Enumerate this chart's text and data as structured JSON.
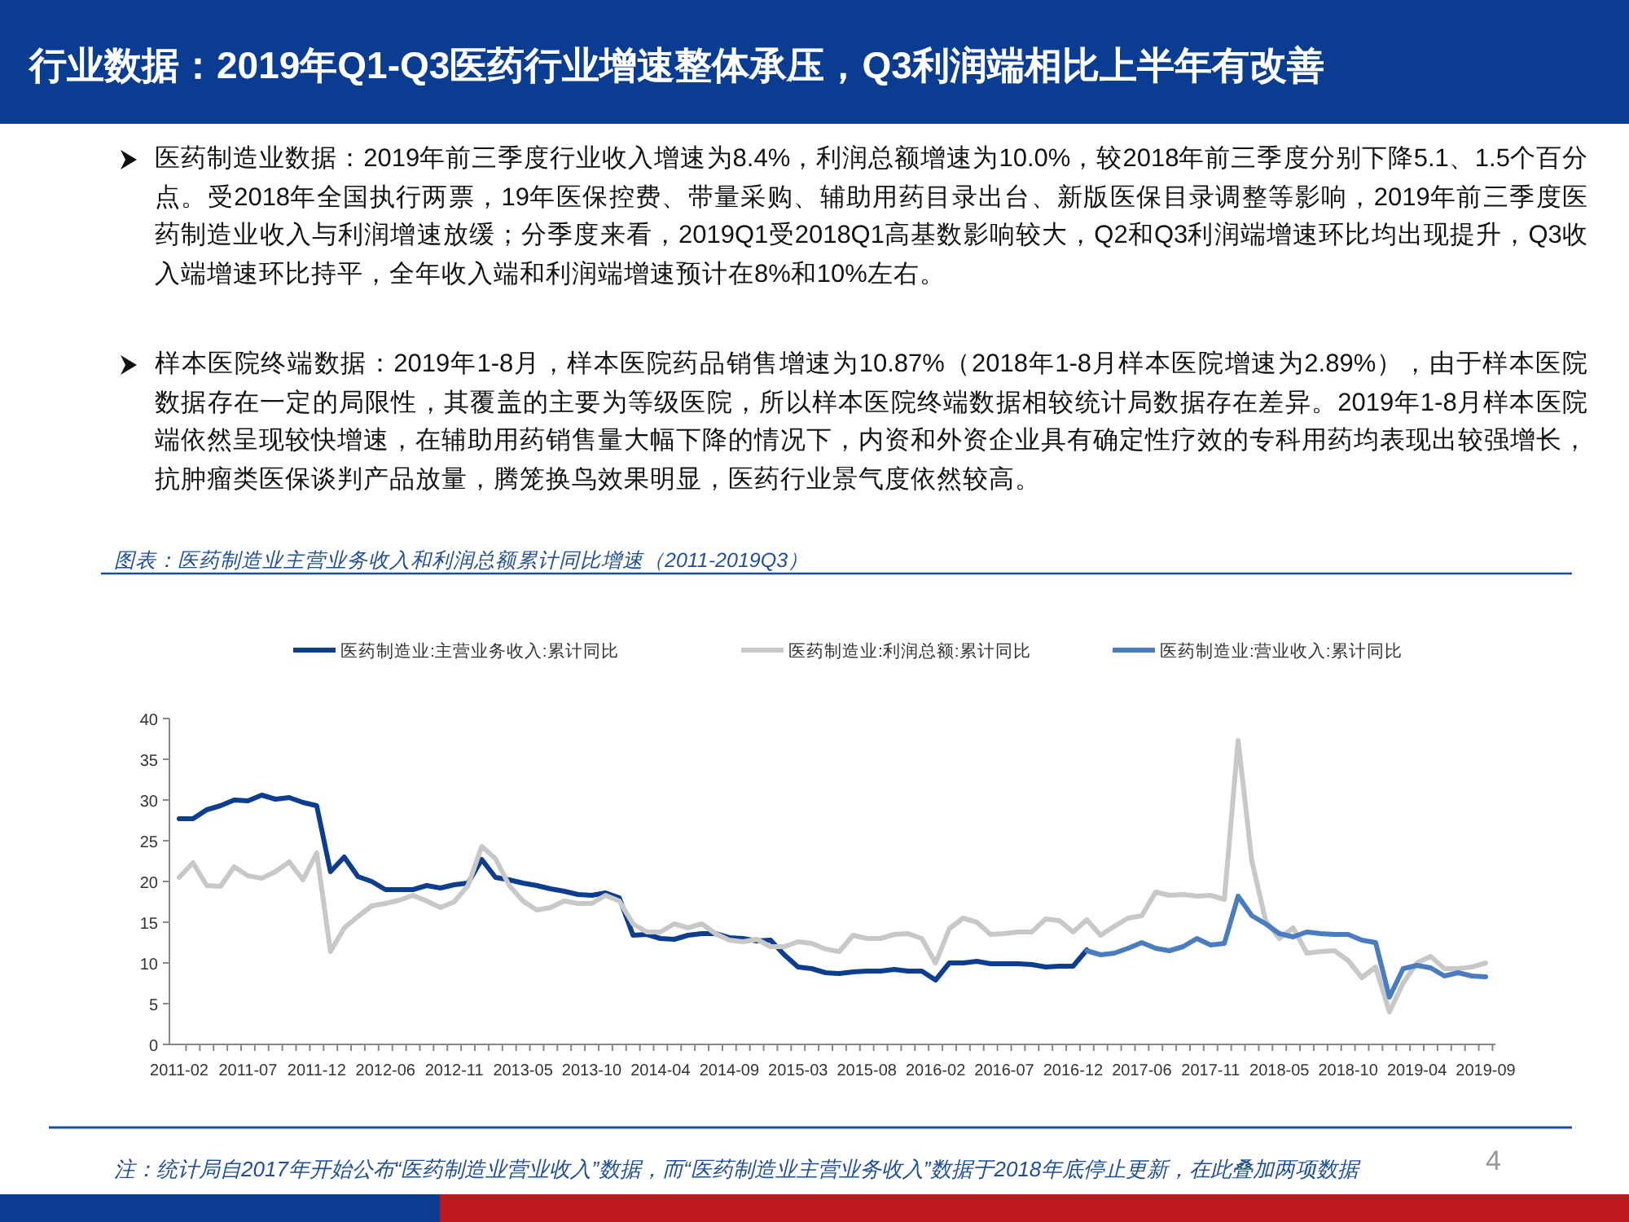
{
  "chart_data": {
    "type": "line",
    "title": "行业数据：2019年Q1-Q3医药行业增速整体承压，Q3利润端相比上半年有改善",
    "subtitle": "图表：医药制造业主营业务收入和利润总额累计同比增速（2011-2019Q3）",
    "annotations": [
      "医药制造业数据：2019年前三季度行业收入增速为8.4%，利润总额增速为10.0%，较2018年前三季度分别下降5.1、1.5个百分点。受2018年全国执行两票，19年医保控费、带量采购、辅助用药目录出台、新版医保目录调整等影响，2019年前三季度医药制造业收入与利润增速放缓；分季度来看，2019Q1受2018Q1高基数影响较大，Q2和Q3利润端增速环比均出现提升，Q3收入端增速环比持平，全年收入端和利润端增速预计在8%和10%左右。",
      "样本医院终端数据：2019年1-8月，样本医院药品销售增速为10.87%（2018年1-8月样本医院增速为2.89%），由于样本医院数据存在一定的局限性，其覆盖的主要为等级医院，所以样本医院终端数据相较统计局数据存在差异。2019年1-8月样本医院端依然呈现较快增速，在辅助用药销售量大幅下降的情况下，内资和外资企业具有确定性疗效的专科用药均表现出较强增长，抗肿瘤类医保谈判产品放量，腾笼换鸟效果明显，医药行业景气度依然较高。",
      "注：统计局自2017年开始公布“医药制造业营业收入”数据，而“医药制造业主营业务收入”数据于2018年底停止更新，在此叠加两项数据",
      "4"
    ],
    "categories": [
      "2011-02",
      null,
      null,
      null,
      null,
      "2011-07",
      null,
      null,
      null,
      null,
      "2011-12",
      null,
      null,
      null,
      null,
      "2012-06",
      null,
      null,
      null,
      null,
      "2012-11",
      null,
      null,
      null,
      null,
      "2013-05",
      null,
      null,
      null,
      null,
      "2013-10",
      null,
      null,
      null,
      null,
      "2014-04",
      null,
      null,
      null,
      null,
      "2014-09",
      null,
      null,
      null,
      null,
      "2015-03",
      null,
      null,
      null,
      null,
      "2015-08",
      null,
      null,
      null,
      null,
      "2016-02",
      null,
      null,
      null,
      null,
      "2016-07",
      null,
      null,
      null,
      null,
      "2016-12",
      null,
      null,
      null,
      null,
      "2017-06",
      null,
      null,
      null,
      null,
      "2017-11",
      null,
      null,
      null,
      null,
      "2018-05",
      null,
      null,
      null,
      null,
      "2018-10",
      null,
      null,
      null,
      null,
      "2019-04",
      null,
      null,
      null,
      null,
      "2019-09"
    ],
    "series": [
      {
        "name": "医药制造业:主营业务收入:累计同比",
        "color": "#0d3d8f",
        "values": [
          27.7,
          27.7,
          28.8,
          29.3,
          30.0,
          29.9,
          30.6,
          30.1,
          30.3,
          29.7,
          29.3,
          21.2,
          23.0,
          20.6,
          20.0,
          19.0,
          19.0,
          19.0,
          19.5,
          19.2,
          19.6,
          19.8,
          22.7,
          20.5,
          20.2,
          19.8,
          19.5,
          19.1,
          18.8,
          18.4,
          18.3,
          18.6,
          18.0,
          13.4,
          13.5,
          13.0,
          12.9,
          13.4,
          13.6,
          13.6,
          13.1,
          13.0,
          12.7,
          12.8,
          11.0,
          9.5,
          9.3,
          8.8,
          8.7,
          8.9,
          9.0,
          9.0,
          9.2,
          9.0,
          9.0,
          7.9,
          10.0,
          10.0,
          10.2,
          9.9,
          9.9,
          9.9,
          9.8,
          9.5,
          9.6,
          9.6,
          11.6,
          null,
          null,
          null,
          null,
          null,
          null,
          null,
          null,
          null,
          null,
          null,
          null,
          null,
          null,
          null,
          null,
          null,
          null,
          null,
          null,
          null,
          null,
          null,
          null,
          null,
          null,
          null,
          null,
          null
        ]
      },
      {
        "name": "医药制造业:利润总额:累计同比",
        "color": "#c8c8c8",
        "values": [
          20.5,
          22.3,
          19.5,
          19.4,
          21.8,
          20.7,
          20.4,
          21.2,
          22.4,
          20.2,
          23.5,
          11.4,
          14.3,
          15.7,
          17.0,
          17.3,
          17.7,
          18.3,
          17.6,
          16.8,
          17.5,
          19.5,
          24.3,
          22.8,
          19.5,
          17.6,
          16.5,
          16.8,
          17.6,
          17.3,
          17.3,
          18.3,
          17.6,
          14.8,
          13.8,
          13.8,
          14.8,
          14.3,
          14.8,
          13.6,
          12.8,
          12.6,
          12.9,
          12.0,
          12.0,
          12.6,
          12.4,
          11.7,
          11.4,
          13.4,
          13.0,
          13.0,
          13.5,
          13.6,
          13.0,
          10.0,
          14.2,
          15.5,
          15.0,
          13.5,
          13.6,
          13.8,
          13.8,
          15.4,
          15.2,
          13.8,
          15.3,
          13.4,
          14.5,
          15.5,
          15.8,
          18.7,
          18.3,
          18.4,
          18.2,
          18.3,
          17.8,
          37.3,
          22.5,
          15.2,
          13.0,
          14.3,
          11.2,
          11.4,
          11.5,
          10.3,
          8.2,
          9.5,
          4.0,
          7.5,
          10.0,
          10.8,
          9.3,
          9.3,
          9.5,
          10.0
        ]
      },
      {
        "name": "医药制造业:营业收入:累计同比",
        "color": "#4a7cc0",
        "values": [
          null,
          null,
          null,
          null,
          null,
          null,
          null,
          null,
          null,
          null,
          null,
          null,
          null,
          null,
          null,
          null,
          null,
          null,
          null,
          null,
          null,
          null,
          null,
          null,
          null,
          null,
          null,
          null,
          null,
          null,
          null,
          null,
          null,
          null,
          null,
          null,
          null,
          null,
          null,
          null,
          null,
          null,
          null,
          null,
          null,
          null,
          null,
          null,
          null,
          null,
          null,
          null,
          null,
          null,
          null,
          null,
          null,
          null,
          null,
          null,
          null,
          null,
          null,
          null,
          null,
          null,
          11.5,
          11.0,
          11.2,
          11.8,
          12.5,
          11.8,
          11.5,
          12.0,
          13.0,
          12.2,
          12.4,
          18.2,
          15.8,
          14.8,
          13.6,
          13.2,
          13.8,
          13.6,
          13.5,
          13.5,
          12.8,
          12.5,
          5.8,
          9.3,
          9.7,
          9.4,
          8.4,
          8.8,
          8.4,
          8.3
        ]
      }
    ],
    "ylim": [
      0,
      40
    ],
    "yticks": [
      0,
      5,
      10,
      15,
      20,
      25,
      30,
      35,
      40
    ],
    "legend": "top",
    "grid": false,
    "marker": "none",
    "line_style": "solid"
  }
}
